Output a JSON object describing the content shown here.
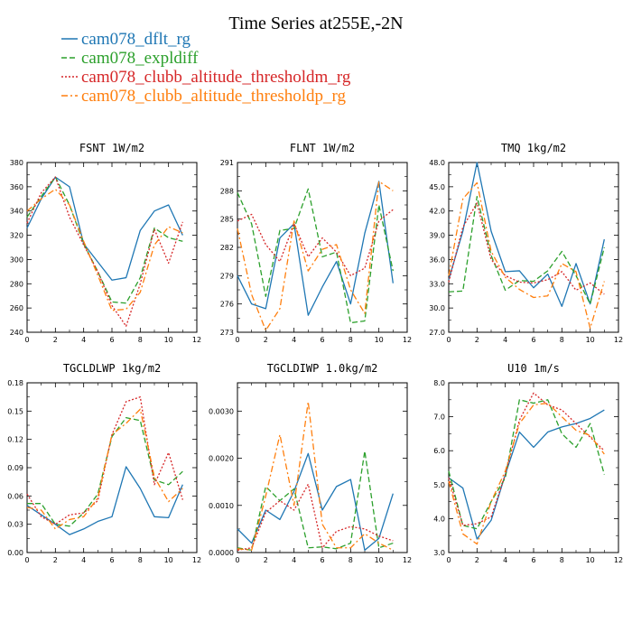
{
  "title": "Time Series at255E,-2N",
  "legend": [
    {
      "name": "cam078_dflt_rg",
      "color": "#1f77b4",
      "dash": "solid"
    },
    {
      "name": "cam078_expldiff",
      "color": "#2ca02c",
      "dash": "dashed"
    },
    {
      "name": "cam078_clubb_altitude_thresholdm_rg",
      "color": "#d62728",
      "dash": "dotted"
    },
    {
      "name": "cam078_clubb_altitude_thresholdp_rg",
      "color": "#ff7f0e",
      "dash": "dashdot"
    }
  ],
  "chart_data": [
    {
      "type": "line",
      "title": "FSNT  1W/m2",
      "xlim": [
        0,
        12
      ],
      "ylim": [
        240,
        380
      ],
      "xticks": [
        0,
        2,
        4,
        6,
        8,
        10,
        12
      ],
      "yticks": [
        240,
        260,
        280,
        300,
        320,
        340,
        360,
        380
      ],
      "ytick_labels": [
        "240",
        "260",
        "280",
        "300",
        "320",
        "340",
        "360",
        "380"
      ],
      "x": [
        0,
        1,
        2,
        3,
        4,
        5,
        6,
        7,
        8,
        9,
        10,
        11
      ],
      "series": [
        {
          "name": "cam078_dflt_rg",
          "values": [
            326,
            350,
            368,
            360,
            313,
            298,
            283,
            285,
            324,
            340,
            345,
            320
          ]
        },
        {
          "name": "cam078_expldiff",
          "values": [
            335,
            352,
            368,
            345,
            313,
            290,
            265,
            264,
            285,
            326,
            318,
            315
          ]
        },
        {
          "name": "cam078_clubb_altitude_thresholdm_rg",
          "values": [
            330,
            355,
            368,
            335,
            312,
            290,
            262,
            245,
            280,
            325,
            297,
            331
          ]
        },
        {
          "name": "cam078_clubb_altitude_thresholdp_rg",
          "values": [
            340,
            350,
            358,
            345,
            315,
            287,
            258,
            259,
            273,
            312,
            327,
            322
          ]
        }
      ]
    },
    {
      "type": "line",
      "title": "FLNT  1W/m2",
      "xlim": [
        0,
        12
      ],
      "ylim": [
        273,
        291
      ],
      "xticks": [
        0,
        2,
        4,
        6,
        8,
        10,
        12
      ],
      "yticks": [
        273,
        276,
        279,
        282,
        285,
        288,
        291
      ],
      "ytick_labels": [
        "273",
        "276",
        "279",
        "282",
        "285",
        "288",
        "291"
      ],
      "x": [
        0,
        1,
        2,
        3,
        4,
        5,
        6,
        7,
        8,
        9,
        10,
        11
      ],
      "series": [
        {
          "name": "cam078_dflt_rg",
          "values": [
            279,
            276,
            275.5,
            283,
            284.5,
            274.8,
            277.8,
            280.5,
            276,
            283.5,
            289,
            278.2
          ]
        },
        {
          "name": "cam078_expldiff",
          "values": [
            287.8,
            284.5,
            276.8,
            283.8,
            284,
            288.2,
            281,
            281.5,
            274,
            274.2,
            286.5,
            279.5
          ]
        },
        {
          "name": "cam078_clubb_altitude_thresholdm_rg",
          "values": [
            284.8,
            285.5,
            282.3,
            280.5,
            284.5,
            281,
            283,
            281.5,
            279,
            279.8,
            284.8,
            286
          ]
        },
        {
          "name": "cam078_clubb_altitude_thresholdp_rg",
          "values": [
            284,
            277,
            273.2,
            275.5,
            284.8,
            279.5,
            281.8,
            282.3,
            277.5,
            275,
            289,
            288
          ]
        }
      ]
    },
    {
      "type": "line",
      "title": "TMQ  1kg/m2",
      "xlim": [
        0,
        12
      ],
      "ylim": [
        27.0,
        48.0
      ],
      "xticks": [
        0,
        2,
        4,
        6,
        8,
        10,
        12
      ],
      "yticks": [
        27,
        30,
        33,
        36,
        39,
        42,
        45,
        48
      ],
      "ytick_labels": [
        "27.0",
        "30.0",
        "33.0",
        "36.0",
        "39.0",
        "42.0",
        "45.0",
        "48.0"
      ],
      "x": [
        0,
        1,
        2,
        3,
        4,
        5,
        6,
        7,
        8,
        9,
        10,
        11
      ],
      "series": [
        {
          "name": "cam078_dflt_rg",
          "values": [
            33.5,
            39.5,
            48,
            39.5,
            34.5,
            34.6,
            32.5,
            34.2,
            30.2,
            35.5,
            30.5,
            38.5
          ]
        },
        {
          "name": "cam078_expldiff",
          "values": [
            32,
            32.1,
            43.8,
            36.5,
            32.2,
            33.4,
            33.3,
            34.6,
            37,
            34,
            30.5,
            37.5
          ]
        },
        {
          "name": "cam078_clubb_altitude_thresholdm_rg",
          "values": [
            33.2,
            40,
            43,
            36,
            34,
            33.2,
            33.1,
            33.5,
            34.5,
            32.2,
            33.1,
            31.7
          ]
        },
        {
          "name": "cam078_clubb_altitude_thresholdp_rg",
          "values": [
            34,
            43.5,
            45.5,
            37,
            33.8,
            32.3,
            31.3,
            31.5,
            35.5,
            34.5,
            27.5,
            33.3
          ]
        }
      ]
    },
    {
      "type": "line",
      "title": "TGCLDLWP  1kg/m2",
      "xlim": [
        0,
        12
      ],
      "ylim": [
        0.0,
        0.18
      ],
      "xticks": [
        0,
        2,
        4,
        6,
        8,
        10,
        12
      ],
      "yticks": [
        0,
        0.03,
        0.06,
        0.09,
        0.12,
        0.15,
        0.18
      ],
      "ytick_labels": [
        "0.00",
        "0.03",
        "0.06",
        "0.09",
        "0.12",
        "0.15",
        "0.18"
      ],
      "x": [
        0,
        1,
        2,
        3,
        4,
        5,
        6,
        7,
        8,
        9,
        10,
        11
      ],
      "series": [
        {
          "name": "cam078_dflt_rg",
          "values": [
            0.05,
            0.04,
            0.03,
            0.019,
            0.025,
            0.033,
            0.038,
            0.091,
            0.068,
            0.038,
            0.037,
            0.072
          ]
        },
        {
          "name": "cam078_expldiff",
          "values": [
            0.052,
            0.052,
            0.03,
            0.028,
            0.042,
            0.062,
            0.123,
            0.143,
            0.14,
            0.077,
            0.072,
            0.086
          ]
        },
        {
          "name": "cam078_clubb_altitude_thresholdm_rg",
          "values": [
            0.062,
            0.038,
            0.03,
            0.04,
            0.042,
            0.055,
            0.125,
            0.16,
            0.165,
            0.072,
            0.106,
            0.056
          ]
        },
        {
          "name": "cam078_clubb_altitude_thresholdp_rg",
          "values": [
            0.048,
            0.045,
            0.025,
            0.035,
            0.038,
            0.058,
            0.125,
            0.137,
            0.152,
            0.08,
            0.054,
            0.068
          ]
        }
      ]
    },
    {
      "type": "line",
      "title": "TGCLDIWP  1.0kg/m2",
      "xlim": [
        0,
        12
      ],
      "ylim": [
        0,
        0.0036
      ],
      "xticks": [
        0,
        2,
        4,
        6,
        8,
        10,
        12
      ],
      "yticks": [
        0,
        0.001,
        0.002,
        0.003
      ],
      "ytick_labels": [
        "0.0000",
        "0.0010",
        "0.0020",
        "0.0030"
      ],
      "x": [
        0,
        1,
        2,
        3,
        4,
        5,
        6,
        7,
        8,
        9,
        10,
        11
      ],
      "series": [
        {
          "name": "cam078_dflt_rg",
          "values": [
            0.0005,
            0.0002,
            0.0009,
            0.0007,
            0.0013,
            0.0021,
            0.0009,
            0.0014,
            0.00155,
            5e-05,
            0.0003,
            0.00125
          ]
        },
        {
          "name": "cam078_expldiff",
          "values": [
            0.0001,
            5e-05,
            0.0014,
            0.0011,
            0.00135,
            0.0001,
            0.00012,
            8e-05,
            0.0002,
            0.00215,
            0.0001,
            0.0002
          ]
        },
        {
          "name": "cam078_clubb_altitude_thresholdm_rg",
          "values": [
            5e-05,
            0.0001,
            0.00085,
            0.0011,
            0.0009,
            0.00145,
            0.0001,
            0.00045,
            0.00055,
            0.0005,
            0.00035,
            0.00025
          ]
        },
        {
          "name": "cam078_clubb_altitude_thresholdp_rg",
          "values": [
            8e-05,
            5e-05,
            0.0012,
            0.0025,
            0.001,
            0.0032,
            0.0006,
            0.0001,
            0.0001,
            0.0004,
            0.0002,
            5e-05
          ]
        }
      ]
    },
    {
      "type": "line",
      "title": "U10  1m/s",
      "xlim": [
        0,
        12
      ],
      "ylim": [
        3.0,
        8.0
      ],
      "xticks": [
        0,
        2,
        4,
        6,
        8,
        10,
        12
      ],
      "yticks": [
        3,
        4,
        5,
        6,
        7,
        8
      ],
      "ytick_labels": [
        "3.0",
        "4.0",
        "5.0",
        "6.0",
        "7.0",
        "8.0"
      ],
      "x": [
        0,
        1,
        2,
        3,
        4,
        5,
        6,
        7,
        8,
        9,
        10,
        11
      ],
      "series": [
        {
          "name": "cam078_dflt_rg",
          "values": [
            5.2,
            4.9,
            3.4,
            3.95,
            5.3,
            6.55,
            6.1,
            6.55,
            6.7,
            6.8,
            6.95,
            7.2
          ]
        },
        {
          "name": "cam078_expldiff",
          "values": [
            5.4,
            3.8,
            3.7,
            4.5,
            5.2,
            7.5,
            7.4,
            7.5,
            6.5,
            6.1,
            6.8,
            5.3
          ]
        },
        {
          "name": "cam078_clubb_altitude_thresholdm_rg",
          "values": [
            5.2,
            3.8,
            3.85,
            4.05,
            5.3,
            6.9,
            7.7,
            7.35,
            7.2,
            6.8,
            6.4,
            6.0
          ]
        },
        {
          "name": "cam078_clubb_altitude_thresholdp_rg",
          "values": [
            5.1,
            3.55,
            3.25,
            4.5,
            5.4,
            6.8,
            7.35,
            7.4,
            7.0,
            6.6,
            6.45,
            5.9
          ]
        }
      ]
    }
  ]
}
